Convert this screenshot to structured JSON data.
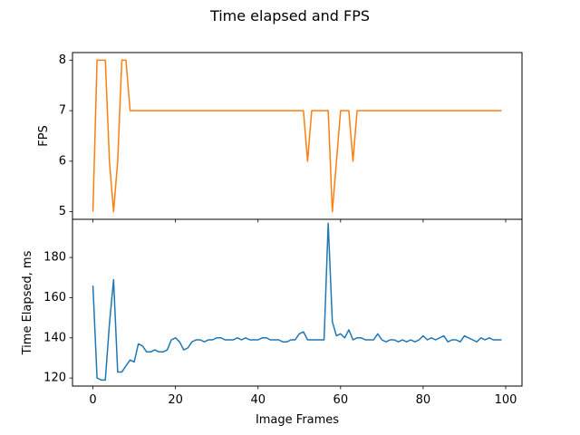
{
  "chart_data": {
    "type": "line",
    "title": "Time elapsed and FPS",
    "xlabel": "Image Frames",
    "xlim": [
      -4.95,
      103.95
    ],
    "xticks": [
      0,
      20,
      40,
      60,
      80,
      100
    ],
    "xtick_labels": [
      "0",
      "20",
      "40",
      "60",
      "80",
      "100"
    ],
    "grid": false,
    "panels": [
      {
        "ylabel": "FPS",
        "ylim": [
          4.85,
          8.15
        ],
        "yticks": [
          5,
          6,
          7,
          8
        ],
        "ytick_labels": [
          "5",
          "6",
          "7",
          "8"
        ],
        "color": "#ff7f0e",
        "x": [
          0,
          1,
          2,
          3,
          4,
          5,
          6,
          7,
          8,
          9,
          10,
          11,
          12,
          13,
          14,
          15,
          16,
          17,
          18,
          19,
          20,
          21,
          22,
          23,
          24,
          25,
          26,
          27,
          28,
          29,
          30,
          31,
          32,
          33,
          34,
          35,
          36,
          37,
          38,
          39,
          40,
          41,
          42,
          43,
          44,
          45,
          46,
          47,
          48,
          49,
          50,
          51,
          52,
          53,
          54,
          55,
          56,
          57,
          58,
          59,
          60,
          61,
          62,
          63,
          64,
          65,
          66,
          67,
          68,
          69,
          70,
          71,
          72,
          73,
          74,
          75,
          76,
          77,
          78,
          79,
          80,
          81,
          82,
          83,
          84,
          85,
          86,
          87,
          88,
          89,
          90,
          91,
          92,
          93,
          94,
          95,
          96,
          97,
          98,
          99
        ],
        "values": [
          5,
          8,
          8,
          8,
          6,
          5,
          6,
          8,
          8,
          7,
          7,
          7,
          7,
          7,
          7,
          7,
          7,
          7,
          7,
          7,
          7,
          7,
          7,
          7,
          7,
          7,
          7,
          7,
          7,
          7,
          7,
          7,
          7,
          7,
          7,
          7,
          7,
          7,
          7,
          7,
          7,
          7,
          7,
          7,
          7,
          7,
          7,
          7,
          7,
          7,
          7,
          7,
          6,
          7,
          7,
          7,
          7,
          7,
          5,
          6,
          7,
          7,
          7,
          6,
          7,
          7,
          7,
          7,
          7,
          7,
          7,
          7,
          7,
          7,
          7,
          7,
          7,
          7,
          7,
          7,
          7,
          7,
          7,
          7,
          7,
          7,
          7,
          7,
          7,
          7,
          7,
          7,
          7,
          7,
          7,
          7,
          7,
          7,
          7,
          7
        ]
      },
      {
        "ylabel": "Time Elapsed, ms",
        "ylim": [
          116,
          199
        ],
        "yticks": [
          120,
          140,
          160,
          180
        ],
        "ytick_labels": [
          "120",
          "140",
          "160",
          "180"
        ],
        "color": "#1f77b4",
        "x": [
          0,
          1,
          2,
          3,
          4,
          5,
          6,
          7,
          8,
          9,
          10,
          11,
          12,
          13,
          14,
          15,
          16,
          17,
          18,
          19,
          20,
          21,
          22,
          23,
          24,
          25,
          26,
          27,
          28,
          29,
          30,
          31,
          32,
          33,
          34,
          35,
          36,
          37,
          38,
          39,
          40,
          41,
          42,
          43,
          44,
          45,
          46,
          47,
          48,
          49,
          50,
          51,
          52,
          53,
          54,
          55,
          56,
          57,
          58,
          59,
          60,
          61,
          62,
          63,
          64,
          65,
          66,
          67,
          68,
          69,
          70,
          71,
          72,
          73,
          74,
          75,
          76,
          77,
          78,
          79,
          80,
          81,
          82,
          83,
          84,
          85,
          86,
          87,
          88,
          89,
          90,
          91,
          92,
          93,
          94,
          95,
          96,
          97,
          98,
          99
        ],
        "values": [
          166,
          120,
          119,
          119,
          147,
          169,
          123,
          123,
          126,
          129,
          128,
          137,
          136,
          133,
          133,
          134,
          133,
          133,
          134,
          139,
          140,
          138,
          134,
          135,
          138,
          139,
          139,
          138,
          139,
          139,
          140,
          140,
          139,
          139,
          139,
          140,
          139,
          140,
          139,
          139,
          139,
          140,
          140,
          139,
          139,
          139,
          138,
          138,
          139,
          139,
          142,
          143,
          139,
          139,
          139,
          139,
          139,
          197,
          148,
          141,
          142,
          140,
          144,
          139,
          140,
          140,
          139,
          139,
          139,
          142,
          139,
          138,
          139,
          139,
          138,
          139,
          138,
          139,
          138,
          139,
          141,
          139,
          140,
          139,
          140,
          141,
          138,
          139,
          139,
          138,
          141,
          140,
          139,
          138,
          140,
          139,
          140,
          139,
          139,
          139
        ]
      }
    ]
  }
}
